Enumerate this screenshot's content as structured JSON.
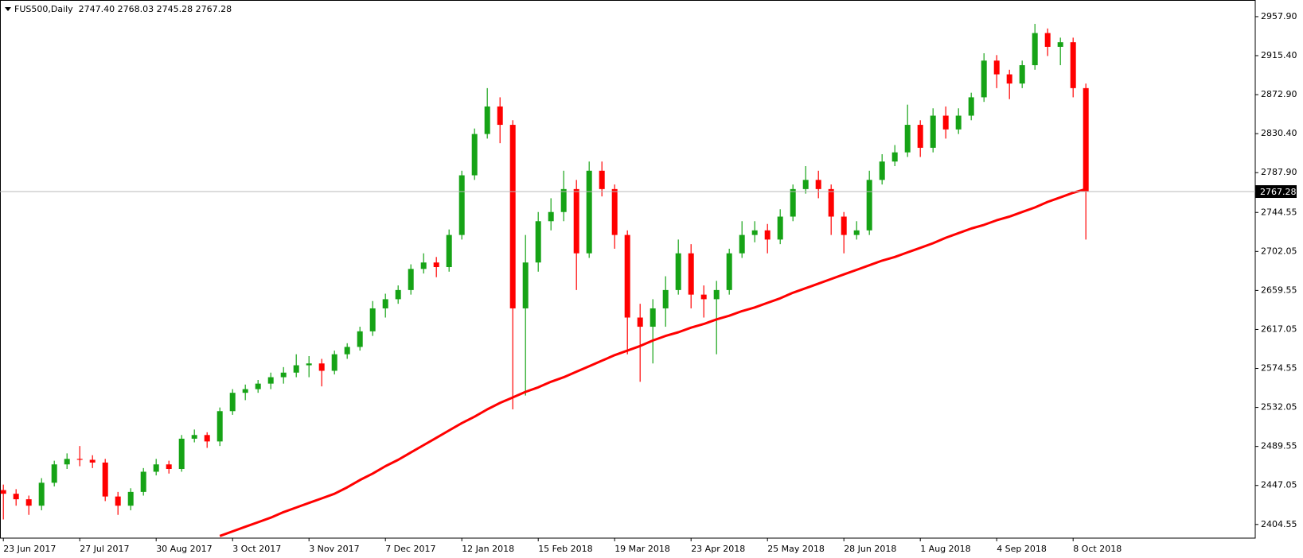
{
  "chart_data": {
    "type": "candlestick",
    "title": "FUS500,Daily  2747.40 2768.03 2745.28 2767.28",
    "categories": [
      "23 Jun 2017",
      null,
      null,
      null,
      null,
      null,
      "27 Jul 2017",
      null,
      null,
      null,
      null,
      null,
      "30 Aug 2017",
      null,
      null,
      null,
      null,
      null,
      "3 Oct 2017",
      null,
      null,
      null,
      null,
      null,
      "3 Nov 2017",
      null,
      null,
      null,
      null,
      null,
      "7 Dec 2017",
      null,
      null,
      null,
      null,
      null,
      "12 Jan 2018",
      null,
      null,
      null,
      null,
      null,
      "15 Feb 2018",
      null,
      null,
      null,
      null,
      null,
      "19 Mar 2018",
      null,
      null,
      null,
      null,
      null,
      "23 Apr 2018",
      null,
      null,
      null,
      null,
      null,
      "25 May 2018",
      null,
      null,
      null,
      null,
      null,
      "28 Jun 2018",
      null,
      null,
      null,
      null,
      null,
      "1 Aug 2018",
      null,
      null,
      null,
      null,
      null,
      "4 Sep 2018",
      null,
      null,
      null,
      null,
      null,
      "8 Oct 2018",
      null
    ],
    "open": [
      2442,
      2438,
      2432,
      2425,
      2450,
      2470,
      2476,
      2475,
      2472,
      2435,
      2425,
      2440,
      2462,
      2470,
      2465,
      2498,
      2502,
      2495,
      2528,
      2548,
      2552,
      2558,
      2565,
      2570,
      2578,
      2580,
      2572,
      2590,
      2598,
      2615,
      2640,
      2650,
      2660,
      2683,
      2690,
      2685,
      2720,
      2785,
      2830,
      2860,
      2840,
      2640,
      2690,
      2735,
      2745,
      2770,
      2700,
      2790,
      2770,
      2720,
      2630,
      2620,
      2640,
      2660,
      2700,
      2655,
      2650,
      2660,
      2700,
      2720,
      2725,
      2715,
      2740,
      2770,
      2780,
      2770,
      2740,
      2720,
      2725,
      2780,
      2800,
      2810,
      2840,
      2815,
      2850,
      2835,
      2850,
      2870,
      2910,
      2895,
      2885,
      2905,
      2940,
      2925,
      2930,
      2880
    ],
    "high": [
      2448,
      2443,
      2436,
      2455,
      2474,
      2482,
      2490,
      2480,
      2476,
      2440,
      2444,
      2466,
      2476,
      2474,
      2502,
      2508,
      2505,
      2532,
      2552,
      2557,
      2562,
      2570,
      2576,
      2590,
      2588,
      2585,
      2594,
      2602,
      2620,
      2648,
      2656,
      2665,
      2688,
      2700,
      2696,
      2726,
      2790,
      2836,
      2880,
      2870,
      2845,
      2720,
      2745,
      2760,
      2790,
      2780,
      2800,
      2800,
      2775,
      2725,
      2645,
      2650,
      2675,
      2715,
      2710,
      2665,
      2670,
      2705,
      2735,
      2735,
      2732,
      2748,
      2775,
      2795,
      2790,
      2775,
      2745,
      2735,
      2790,
      2808,
      2818,
      2862,
      2845,
      2858,
      2860,
      2858,
      2875,
      2918,
      2916,
      2900,
      2910,
      2950,
      2945,
      2935,
      2935,
      2885
    ],
    "low": [
      2410,
      2425,
      2415,
      2420,
      2446,
      2465,
      2468,
      2466,
      2430,
      2415,
      2420,
      2436,
      2458,
      2460,
      2462,
      2494,
      2488,
      2490,
      2524,
      2540,
      2548,
      2552,
      2558,
      2565,
      2565,
      2555,
      2568,
      2585,
      2594,
      2610,
      2630,
      2645,
      2655,
      2678,
      2674,
      2680,
      2715,
      2780,
      2825,
      2820,
      2530,
      2545,
      2680,
      2725,
      2735,
      2660,
      2695,
      2762,
      2705,
      2590,
      2560,
      2580,
      2620,
      2655,
      2640,
      2630,
      2590,
      2655,
      2695,
      2712,
      2700,
      2710,
      2735,
      2765,
      2760,
      2720,
      2700,
      2715,
      2720,
      2775,
      2795,
      2805,
      2805,
      2810,
      2825,
      2830,
      2845,
      2865,
      2880,
      2868,
      2880,
      2900,
      2915,
      2905,
      2870,
      2715
    ],
    "close": [
      2438,
      2432,
      2425,
      2450,
      2470,
      2476,
      2475,
      2472,
      2435,
      2425,
      2440,
      2462,
      2470,
      2465,
      2498,
      2502,
      2495,
      2528,
      2548,
      2552,
      2558,
      2565,
      2570,
      2578,
      2580,
      2572,
      2590,
      2598,
      2615,
      2640,
      2650,
      2660,
      2683,
      2690,
      2685,
      2720,
      2785,
      2830,
      2860,
      2840,
      2640,
      2690,
      2735,
      2745,
      2770,
      2700,
      2790,
      2770,
      2720,
      2630,
      2620,
      2640,
      2660,
      2700,
      2655,
      2650,
      2660,
      2700,
      2720,
      2725,
      2715,
      2740,
      2770,
      2780,
      2770,
      2740,
      2720,
      2725,
      2780,
      2800,
      2810,
      2840,
      2815,
      2850,
      2835,
      2850,
      2870,
      2910,
      2895,
      2885,
      2905,
      2940,
      2925,
      2930,
      2880,
      2767.28
    ],
    "up_color": "#16a316",
    "down_color": "#ff0000",
    "moving_average": {
      "color": "#ff0000",
      "values": [
        null,
        null,
        null,
        null,
        null,
        null,
        null,
        null,
        null,
        null,
        null,
        null,
        null,
        null,
        null,
        null,
        null,
        2392,
        2397,
        2402,
        2407,
        2412,
        2418,
        2423,
        2428,
        2433,
        2438,
        2445,
        2453,
        2460,
        2468,
        2475,
        2483,
        2491,
        2499,
        2507,
        2515,
        2522,
        2530,
        2537,
        2543,
        2549,
        2554,
        2560,
        2565,
        2571,
        2577,
        2583,
        2589,
        2594,
        2599,
        2605,
        2610,
        2614,
        2619,
        2623,
        2628,
        2632,
        2637,
        2641,
        2646,
        2651,
        2657,
        2662,
        2667,
        2672,
        2677,
        2682,
        2687,
        2692,
        2696,
        2701,
        2706,
        2711,
        2717,
        2722,
        2727,
        2731,
        2736,
        2740,
        2745,
        2750,
        2756,
        2761,
        2766,
        2770
      ]
    },
    "last_price": 2767.28,
    "ylim": [
      2389.65,
      2974.3
    ],
    "yticks": [
      {
        "value": 2957.9,
        "label": "2957.90"
      },
      {
        "value": 2915.4,
        "label": "2915.40"
      },
      {
        "value": 2872.9,
        "label": "2872.90"
      },
      {
        "value": 2830.4,
        "label": "2830.40"
      },
      {
        "value": 2787.9,
        "label": "2787.90"
      },
      2744.55,
      2702.05,
      2659.55,
      2617.05,
      2574.55,
      2532.05,
      2489.55,
      2447.05,
      2404.55
    ],
    "grid": false
  }
}
